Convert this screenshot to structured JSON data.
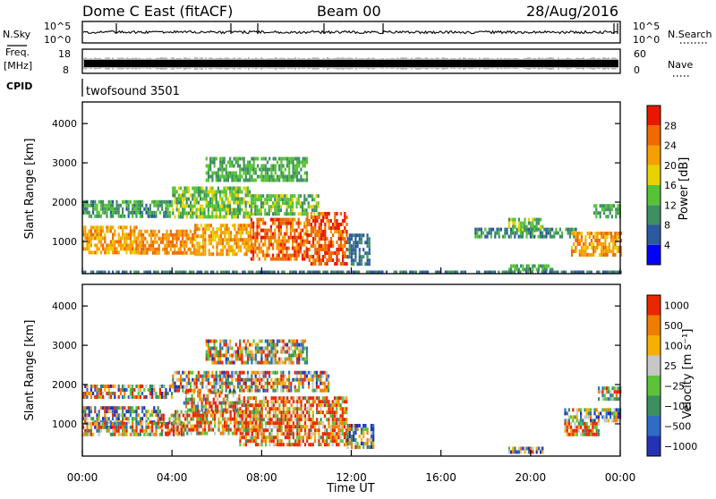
{
  "header": {
    "station": "Dome C East (fitACF)",
    "beam": "Beam 00",
    "date": "28/Aug/2016"
  },
  "noise_panel": {
    "left_label": "N.Sky",
    "left_ticks": [
      "10^5",
      "10^0"
    ],
    "right_label": "N.Search",
    "right_ticks": [
      "10^5",
      "10^0"
    ]
  },
  "freq_panel": {
    "left_label_1": "Freq.",
    "left_label_2": "[MHz]",
    "left_ticks": [
      "18",
      "8"
    ],
    "right_label": "Nave",
    "right_ticks": [
      "60",
      "0"
    ],
    "cpid_label": "CPID",
    "cpid_value": "twofsound 3501"
  },
  "colors": {
    "power_scale": [
      "#0000ff",
      "#2c5aa0",
      "#3f8f63",
      "#56c236",
      "#e6d200",
      "#f5a000",
      "#ef6a00",
      "#e81800"
    ],
    "velocity_scale": [
      "#2333b3",
      "#2f6cc4",
      "#3c8f5e",
      "#5dc23a",
      "#c7c7c7",
      "#f5b000",
      "#ef7e00",
      "#e82800"
    ]
  },
  "chart_data": [
    {
      "type": "heatmap",
      "name": "power",
      "ylabel": "Slant Range [km]",
      "xlim": [
        0,
        24
      ],
      "ylim": [
        180,
        4550
      ],
      "y_ticks": [
        1000,
        2000,
        3000,
        4000
      ],
      "colorbar": {
        "label": "Power [dB]",
        "ticks": [
          "28",
          "24",
          "20",
          "16",
          "12",
          "8",
          "4"
        ],
        "range": [
          0,
          32
        ]
      },
      "bands": [
        {
          "t0": 0.0,
          "t1": 2.5,
          "r0": 750,
          "r1": 1400,
          "value": 22
        },
        {
          "t0": 2.5,
          "t1": 5.0,
          "r0": 700,
          "r1": 1300,
          "value": 24
        },
        {
          "t0": 5.0,
          "t1": 7.5,
          "r0": 650,
          "r1": 1450,
          "value": 22
        },
        {
          "t0": 7.5,
          "t1": 10.0,
          "r0": 550,
          "r1": 1600,
          "value": 26
        },
        {
          "t0": 10.0,
          "t1": 11.8,
          "r0": 450,
          "r1": 1750,
          "value": 27
        },
        {
          "t0": 0.0,
          "t1": 4.0,
          "r0": 1600,
          "r1": 2050,
          "value": 11
        },
        {
          "t0": 4.0,
          "t1": 7.5,
          "r0": 1600,
          "r1": 2400,
          "value": 14
        },
        {
          "t0": 7.5,
          "t1": 10.5,
          "r0": 1700,
          "r1": 2200,
          "value": 14
        },
        {
          "t0": 5.5,
          "t1": 10.0,
          "r0": 2550,
          "r1": 3150,
          "value": 12
        },
        {
          "t0": 11.8,
          "t1": 12.8,
          "r0": 450,
          "r1": 1200,
          "value": 8
        },
        {
          "t0": 19.0,
          "t1": 20.5,
          "r0": 1300,
          "r1": 1600,
          "value": 14
        },
        {
          "t0": 17.5,
          "t1": 22.0,
          "r0": 1100,
          "r1": 1350,
          "value": 10
        },
        {
          "t0": 21.8,
          "t1": 24.0,
          "r0": 700,
          "r1": 1250,
          "value": 23
        },
        {
          "t0": 22.8,
          "t1": 24.0,
          "r0": 1650,
          "r1": 1950,
          "value": 12
        },
        {
          "t0": 19.0,
          "t1": 21.0,
          "r0": 250,
          "r1": 420,
          "value": 12
        },
        {
          "t0": 0.0,
          "t1": 24.0,
          "r0": 190,
          "r1": 260,
          "value": 8
        }
      ]
    },
    {
      "type": "heatmap",
      "name": "velocity",
      "ylabel": "Slant Range [km]",
      "xlabel": "Time UT",
      "xlim": [
        0,
        24
      ],
      "ylim": [
        180,
        4550
      ],
      "y_ticks": [
        1000,
        2000,
        3000,
        4000
      ],
      "x_ticks": [
        "00:00",
        "04:00",
        "08:00",
        "12:00",
        "16:00",
        "20:00",
        "00:00"
      ],
      "colorbar": {
        "label": "Velocity [m s⁻¹]",
        "ticks": [
          "1000",
          "500",
          "100",
          "25",
          "−25",
          "−100",
          "−500",
          "−1000"
        ]
      },
      "bands": [
        {
          "t0": 0.0,
          "t1": 3.5,
          "r0": 1050,
          "r1": 1450,
          "value": 3
        },
        {
          "t0": 0.0,
          "t1": 4.5,
          "r0": 700,
          "r1": 1050,
          "value": 4
        },
        {
          "t0": 3.5,
          "t1": 8.0,
          "r0": 800,
          "r1": 1350,
          "value": 6
        },
        {
          "t0": 4.5,
          "t1": 7.0,
          "r0": 1350,
          "r1": 1850,
          "value": 5
        },
        {
          "t0": 7.0,
          "t1": 11.8,
          "r0": 500,
          "r1": 1700,
          "value": 6
        },
        {
          "t0": 0.0,
          "t1": 4.0,
          "r0": 1700,
          "r1": 2000,
          "value": 4
        },
        {
          "t0": 4.0,
          "t1": 11.0,
          "r0": 1850,
          "r1": 2350,
          "value": 4
        },
        {
          "t0": 5.5,
          "t1": 10.0,
          "r0": 2550,
          "r1": 3150,
          "value": 4
        },
        {
          "t0": 11.8,
          "t1": 13.0,
          "r0": 450,
          "r1": 1000,
          "value": 3
        },
        {
          "t0": 21.5,
          "t1": 24.0,
          "r0": 1050,
          "r1": 1400,
          "value": 3
        },
        {
          "t0": 21.5,
          "t1": 23.0,
          "r0": 700,
          "r1": 1050,
          "value": 6
        },
        {
          "t0": 23.0,
          "t1": 24.0,
          "r0": 1650,
          "r1": 1950,
          "value": 4
        },
        {
          "t0": 19.0,
          "t1": 20.5,
          "r0": 250,
          "r1": 420,
          "value": 3
        }
      ]
    }
  ]
}
